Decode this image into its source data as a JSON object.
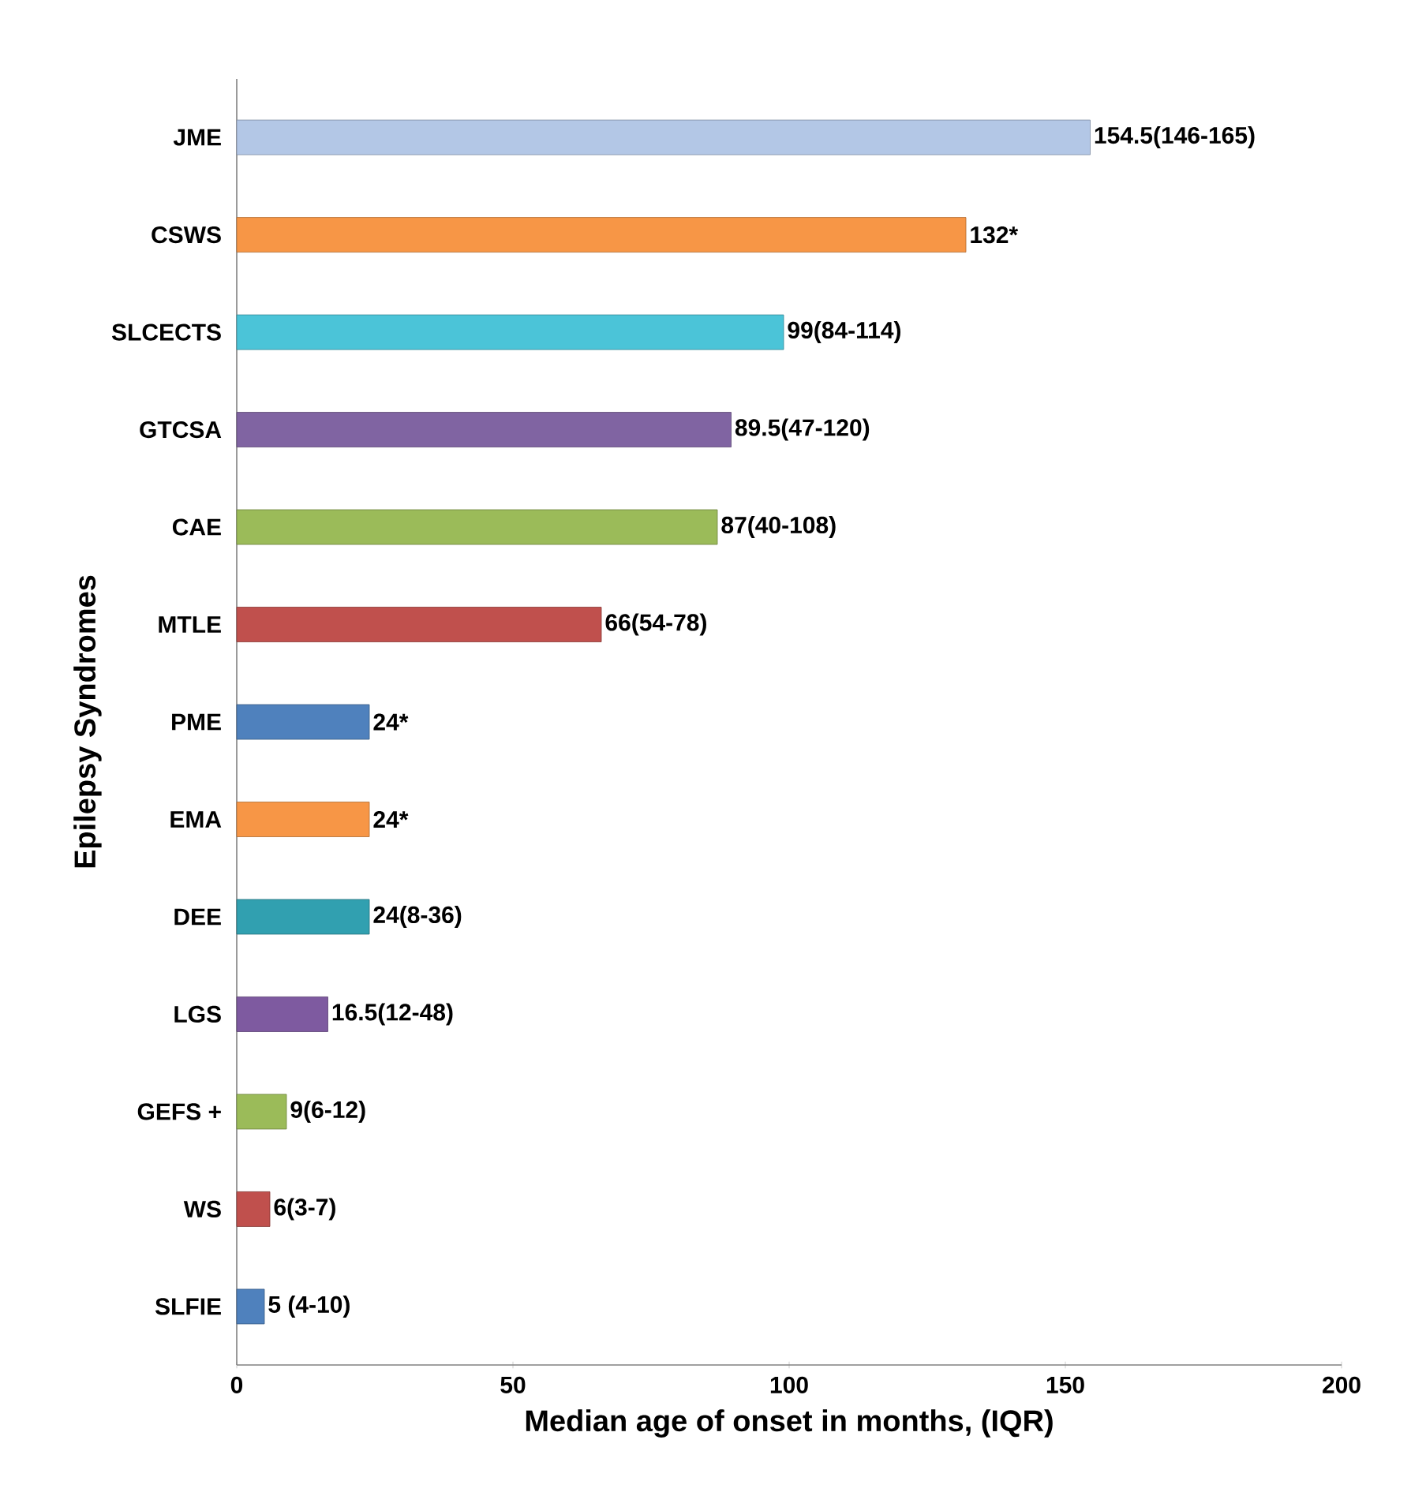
{
  "chart_data": {
    "type": "bar",
    "orientation": "horizontal",
    "xlabel": "Median age of onset in months, (IQR)",
    "ylabel": "Epilepsy Syndromes",
    "categories": [
      "JME",
      "CSWS",
      "SLCECTS",
      "GTCSA",
      "CAE",
      "MTLE",
      "PME",
      "EMA",
      "DEE",
      "LGS",
      "GEFS +",
      "WS",
      "SLFIE"
    ],
    "values": [
      154.5,
      132,
      99,
      89.5,
      87,
      66,
      24,
      24,
      24,
      16.5,
      9,
      6,
      5
    ],
    "value_labels": [
      "154.5(146-165)",
      "132*",
      "99(84-114)",
      "89.5(47-120)",
      "87(40-108)",
      "66(54-78)",
      "24*",
      "24*",
      "24(8-36)",
      "16.5(12-48)",
      "9(6-12)",
      "6(3-7)",
      "5 (4-10)"
    ],
    "colors": [
      "#b3c7e6",
      "#f79646",
      "#4bc4d8",
      "#8064a2",
      "#9bbb59",
      "#c0504d",
      "#4f81bd",
      "#f79646",
      "#31a0b0",
      "#7e5aa0",
      "#9bbb59",
      "#c0504d",
      "#4f81bd"
    ],
    "xlim": [
      0,
      200
    ],
    "xticks": [
      0,
      50,
      100,
      150,
      200
    ]
  }
}
